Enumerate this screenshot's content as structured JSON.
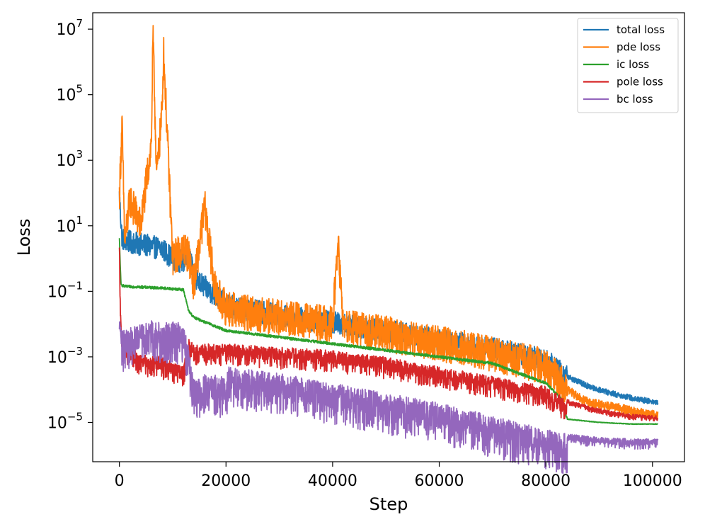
{
  "chart_data": {
    "type": "line",
    "title": "",
    "xlabel": "Step",
    "ylabel": "Loss",
    "yscale": "log",
    "xlim": [
      -5000,
      106000
    ],
    "ylim_exp": [
      -6.2,
      7.5
    ],
    "x_ticks": [
      0,
      20000,
      40000,
      60000,
      80000,
      100000
    ],
    "x_tick_labels": [
      "0",
      "20000",
      "40000",
      "60000",
      "80000",
      "100000"
    ],
    "y_ticks_exp": [
      -5,
      -3,
      -1,
      1,
      3,
      5,
      7
    ],
    "y_tick_base": "10",
    "y_tick_exps": [
      "−5",
      "−3",
      "−1",
      "1",
      "3",
      "5",
      "7"
    ],
    "legend_position": "top-right",
    "series": [
      {
        "name": "total loss",
        "color": "#1f77b4",
        "x": [
          0,
          500,
          2000,
          5000,
          8000,
          10000,
          12000,
          13000,
          14000,
          17000,
          20000,
          22000,
          30000,
          40000,
          50000,
          60000,
          70000,
          80000,
          84000,
          88000,
          92000,
          96000,
          101000
        ],
        "log10_y": [
          1.9,
          0.6,
          0.5,
          0.4,
          0.3,
          0.0,
          -0.1,
          0.3,
          -0.6,
          -1.0,
          -1.4,
          -1.5,
          -1.75,
          -1.95,
          -2.2,
          -2.5,
          -2.75,
          -3.1,
          -3.6,
          -3.9,
          -4.1,
          -4.25,
          -4.4
        ]
      },
      {
        "name": "pde loss",
        "color": "#ff7f0e",
        "x": [
          0,
          500,
          1000,
          2000,
          4000,
          6000,
          6300,
          7000,
          8000,
          8300,
          10000,
          12000,
          13000,
          14000,
          16000,
          18000,
          20000,
          22000,
          30000,
          40000,
          41000,
          42000,
          50000,
          60000,
          70000,
          80000,
          84000,
          88000,
          92000,
          96000,
          101000
        ],
        "log10_y": [
          1.9,
          4.1,
          0.5,
          1.8,
          1.0,
          3.5,
          6.8,
          2.5,
          4.5,
          6.3,
          0.0,
          0.3,
          0.1,
          -0.8,
          1.6,
          -1.0,
          -1.5,
          -1.6,
          -1.8,
          -2.0,
          0.5,
          -2.1,
          -2.3,
          -2.6,
          -2.9,
          -3.3,
          -4.0,
          -4.4,
          -4.5,
          -4.65,
          -4.8
        ]
      },
      {
        "name": "ic loss",
        "color": "#2ca02c",
        "x": [
          0,
          300,
          1000,
          4000,
          8000,
          12000,
          13000,
          14000,
          20000,
          30000,
          40000,
          50000,
          60000,
          70000,
          80000,
          83000,
          84000,
          90000,
          96000,
          101000
        ],
        "log10_y": [
          0.6,
          -0.8,
          -0.85,
          -0.87,
          -0.9,
          -0.95,
          -1.6,
          -1.8,
          -2.2,
          -2.4,
          -2.6,
          -2.8,
          -3.0,
          -3.2,
          -3.8,
          -4.3,
          -4.9,
          -5.0,
          -5.05,
          -5.05
        ]
      },
      {
        "name": "pole loss",
        "color": "#d62728",
        "x": [
          0,
          200,
          500,
          2000,
          4000,
          8000,
          12000,
          13000,
          14000,
          20000,
          30000,
          40000,
          50000,
          60000,
          70000,
          80000,
          84000,
          88000,
          92000,
          96000,
          101000
        ],
        "log10_y": [
          0.6,
          -1.5,
          -2.3,
          -2.7,
          -2.9,
          -3.0,
          -3.3,
          -2.4,
          -2.6,
          -2.6,
          -2.7,
          -2.8,
          -3.0,
          -3.3,
          -3.6,
          -3.9,
          -4.3,
          -4.5,
          -4.65,
          -4.75,
          -4.8
        ]
      },
      {
        "name": "bc loss",
        "color": "#9467bd",
        "x": [
          0,
          300,
          2000,
          4000,
          6000,
          8000,
          10000,
          12000,
          13000,
          14000,
          16000,
          20000,
          20500,
          30000,
          40000,
          50000,
          60000,
          70000,
          80000,
          84000,
          90000,
          96000,
          101000
        ],
        "log10_y": [
          -1.6,
          -2.2,
          -2.1,
          -2.0,
          -1.9,
          -1.95,
          -1.9,
          -2.0,
          -2.7,
          -3.7,
          -3.5,
          -3.6,
          -3.3,
          -3.5,
          -3.8,
          -4.1,
          -4.4,
          -4.8,
          -5.2,
          -5.35,
          -5.45,
          -5.5,
          -5.5
        ]
      }
    ]
  }
}
